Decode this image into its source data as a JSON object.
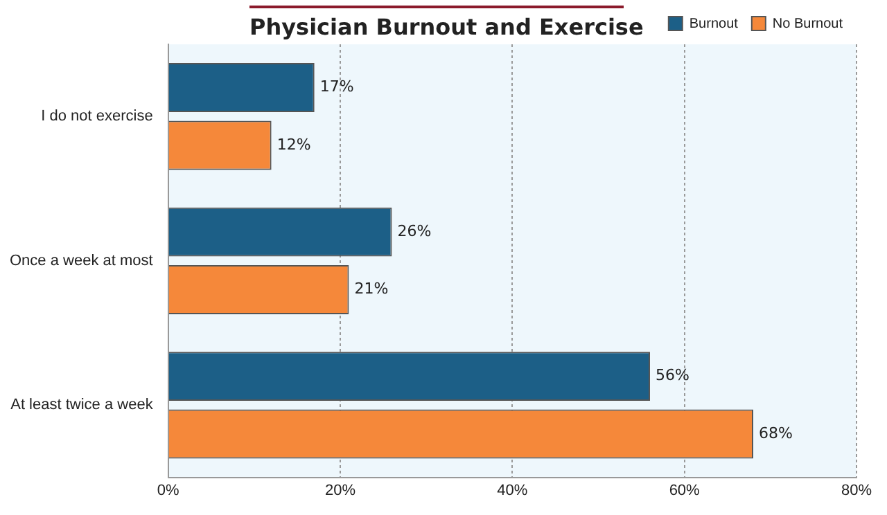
{
  "chart_data": {
    "type": "bar",
    "orientation": "horizontal",
    "title": "Physician Burnout and Exercise",
    "categories": [
      "I do not exercise",
      "Once a week at most",
      "At least twice a week"
    ],
    "series": [
      {
        "name": "Burnout",
        "color": "#1c5f87",
        "values": [
          17,
          26,
          56
        ],
        "value_labels": [
          "17%",
          "26%",
          "56%"
        ]
      },
      {
        "name": "No Burnout",
        "color": "#f5883a",
        "values": [
          12,
          21,
          68
        ],
        "value_labels": [
          "12%",
          "21%",
          "68%"
        ]
      }
    ],
    "xlim": [
      0,
      80
    ],
    "xticks": [
      {
        "value": 0,
        "label": "0%"
      },
      {
        "value": 20,
        "label": "20%"
      },
      {
        "value": 40,
        "label": "40%"
      },
      {
        "value": 60,
        "label": "60%"
      },
      {
        "value": 80,
        "label": "80%"
      }
    ],
    "grid": "x",
    "legend": "top right"
  }
}
